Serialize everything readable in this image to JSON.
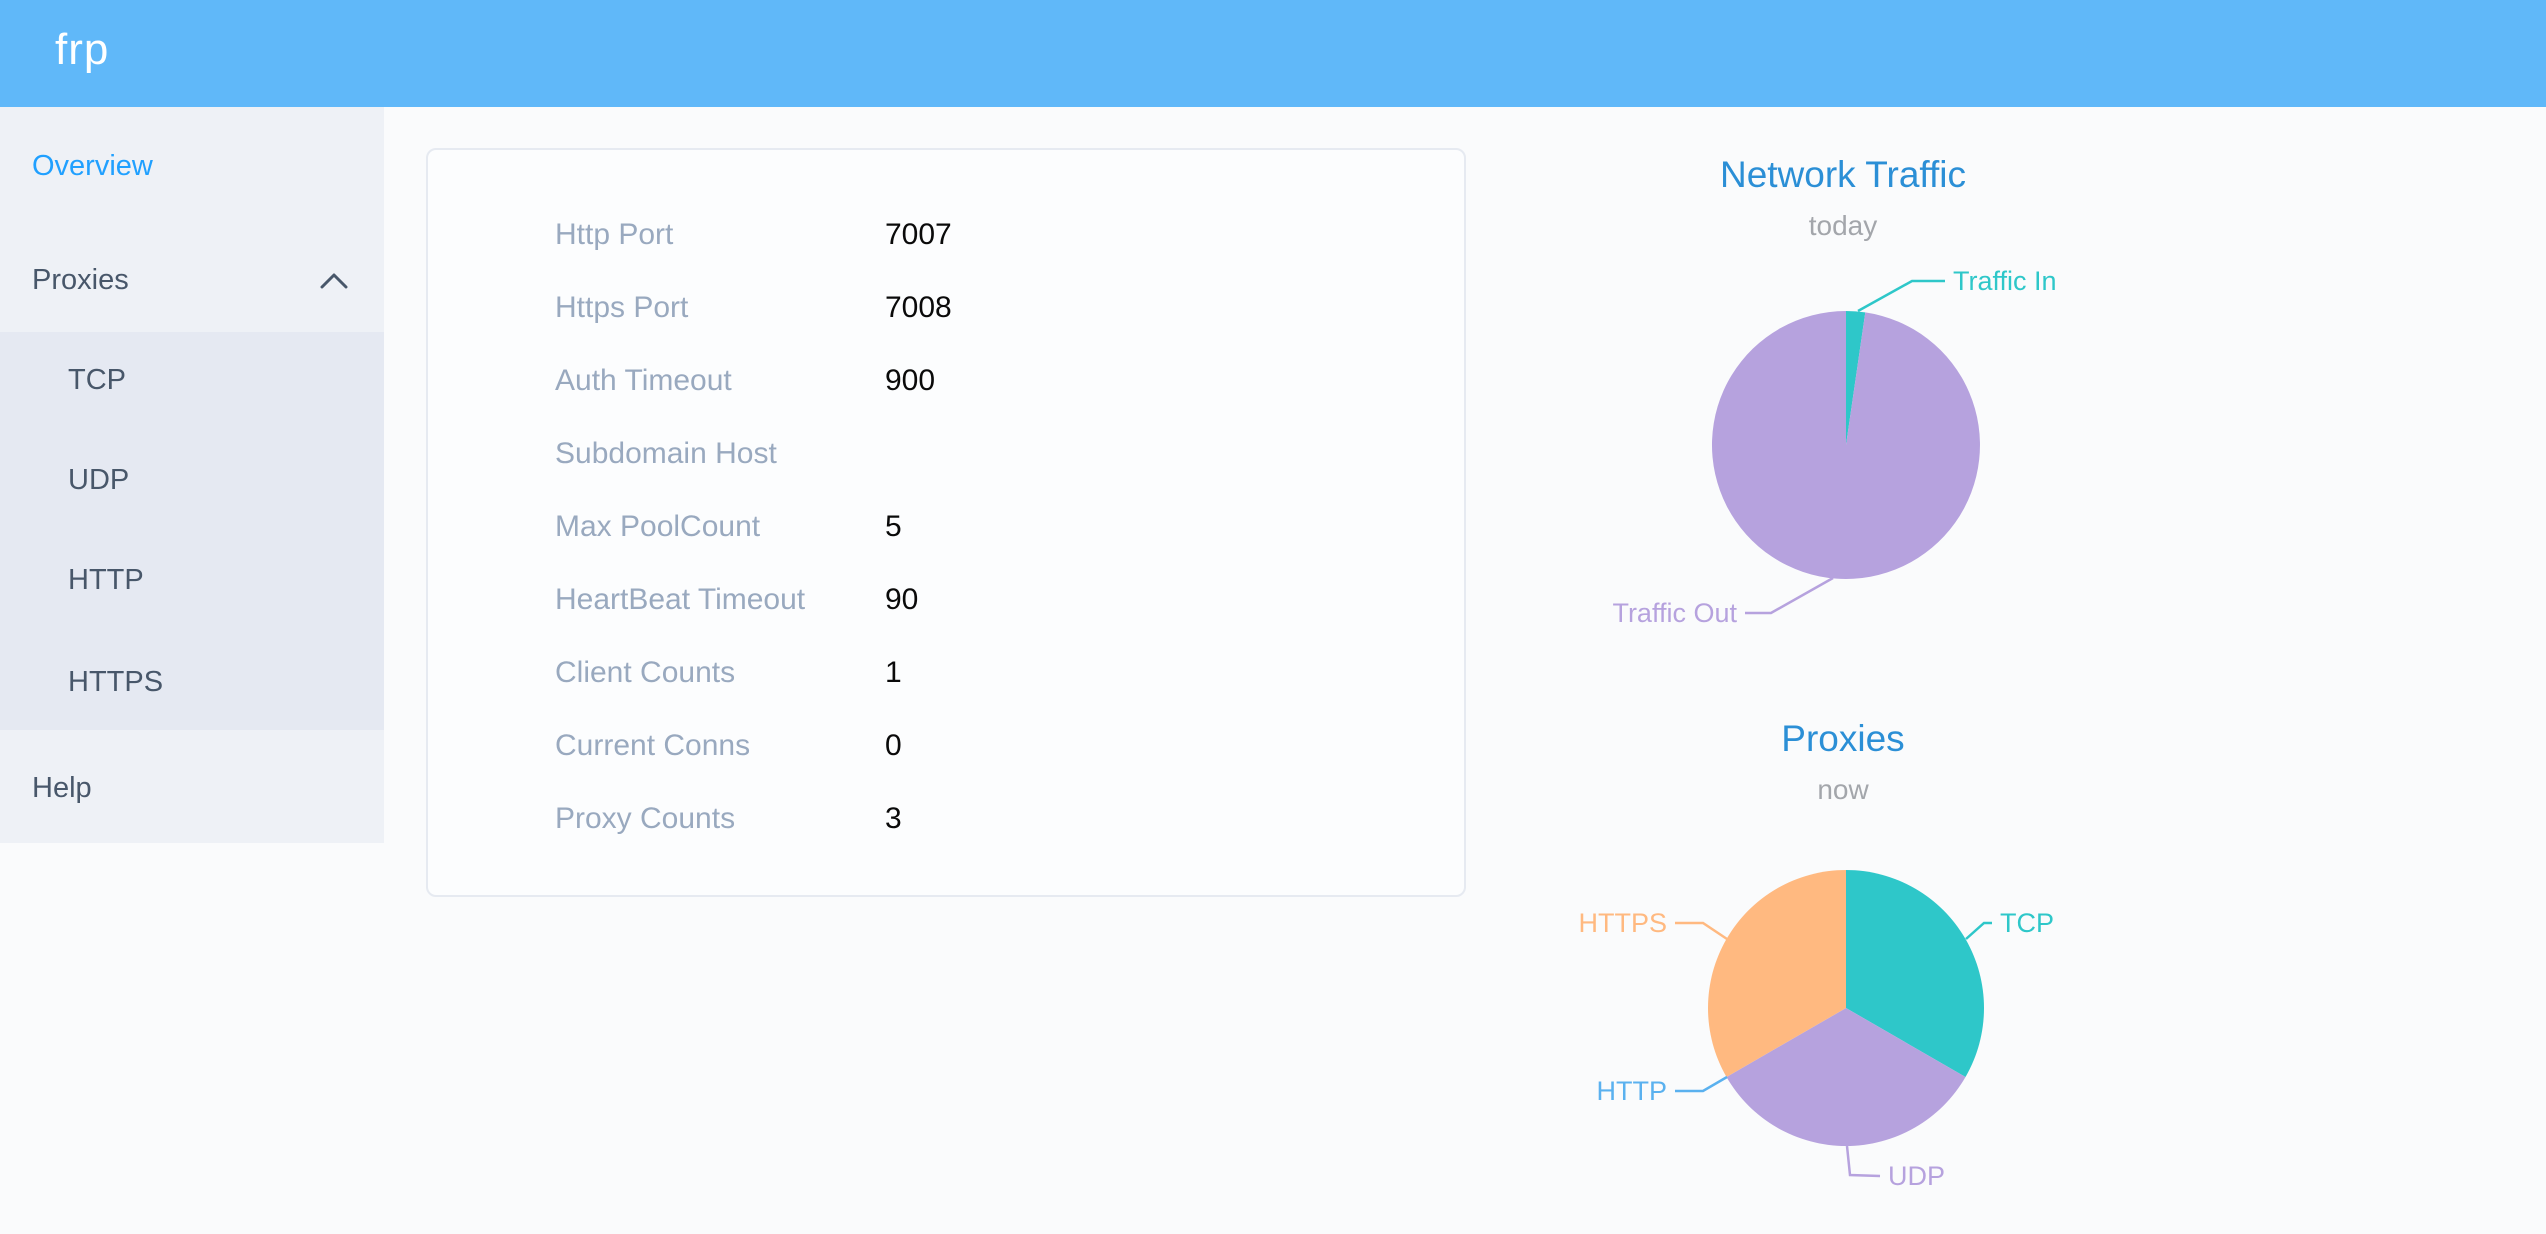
{
  "header": {
    "logo": "frp"
  },
  "sidebar": {
    "items": [
      {
        "label": "Overview",
        "active": true
      },
      {
        "label": "Proxies",
        "expanded": true
      },
      {
        "label": "Help",
        "active": false
      }
    ],
    "proxies_submenu": [
      "TCP",
      "UDP",
      "HTTP",
      "HTTPS"
    ]
  },
  "overview": {
    "rows": [
      {
        "label": "Http Port",
        "value": "7007"
      },
      {
        "label": "Https Port",
        "value": "7008"
      },
      {
        "label": "Auth Timeout",
        "value": "900"
      },
      {
        "label": "Subdomain Host",
        "value": ""
      },
      {
        "label": "Max PoolCount",
        "value": "5"
      },
      {
        "label": "HeartBeat Timeout",
        "value": "90"
      },
      {
        "label": "Client Counts",
        "value": "1"
      },
      {
        "label": "Current Conns",
        "value": "0"
      },
      {
        "label": "Proxy Counts",
        "value": "3"
      }
    ]
  },
  "chart_data": [
    {
      "type": "pie",
      "title": "Network Traffic",
      "subtitle": "today",
      "unit": "percent share (estimated from slice angles)",
      "legend_position": "callout-labels",
      "slices": [
        {
          "name": "Traffic In",
          "value": 2.3,
          "color": "#2ec7c9"
        },
        {
          "name": "Traffic Out",
          "value": 97.7,
          "color": "#b6a2de"
        }
      ]
    },
    {
      "type": "pie",
      "title": "Proxies",
      "subtitle": "now",
      "unit": "proxy count",
      "legend_position": "callout-labels",
      "slices": [
        {
          "name": "TCP",
          "value": 1,
          "color": "#2ec7c9"
        },
        {
          "name": "UDP",
          "value": 1,
          "color": "#b6a2de"
        },
        {
          "name": "HTTP",
          "value": 0,
          "color": "#5ab1ef"
        },
        {
          "name": "HTTPS",
          "value": 1,
          "color": "#ffb980"
        }
      ]
    }
  ],
  "colors": {
    "header_bg": "#60b8f9",
    "menu_active": "#20a0ff",
    "menu_text": "#48576a",
    "sidebar_bg": "#eef1f6",
    "submenu_bg": "#e5e9f2",
    "chart_title": "#2b8fd6"
  }
}
